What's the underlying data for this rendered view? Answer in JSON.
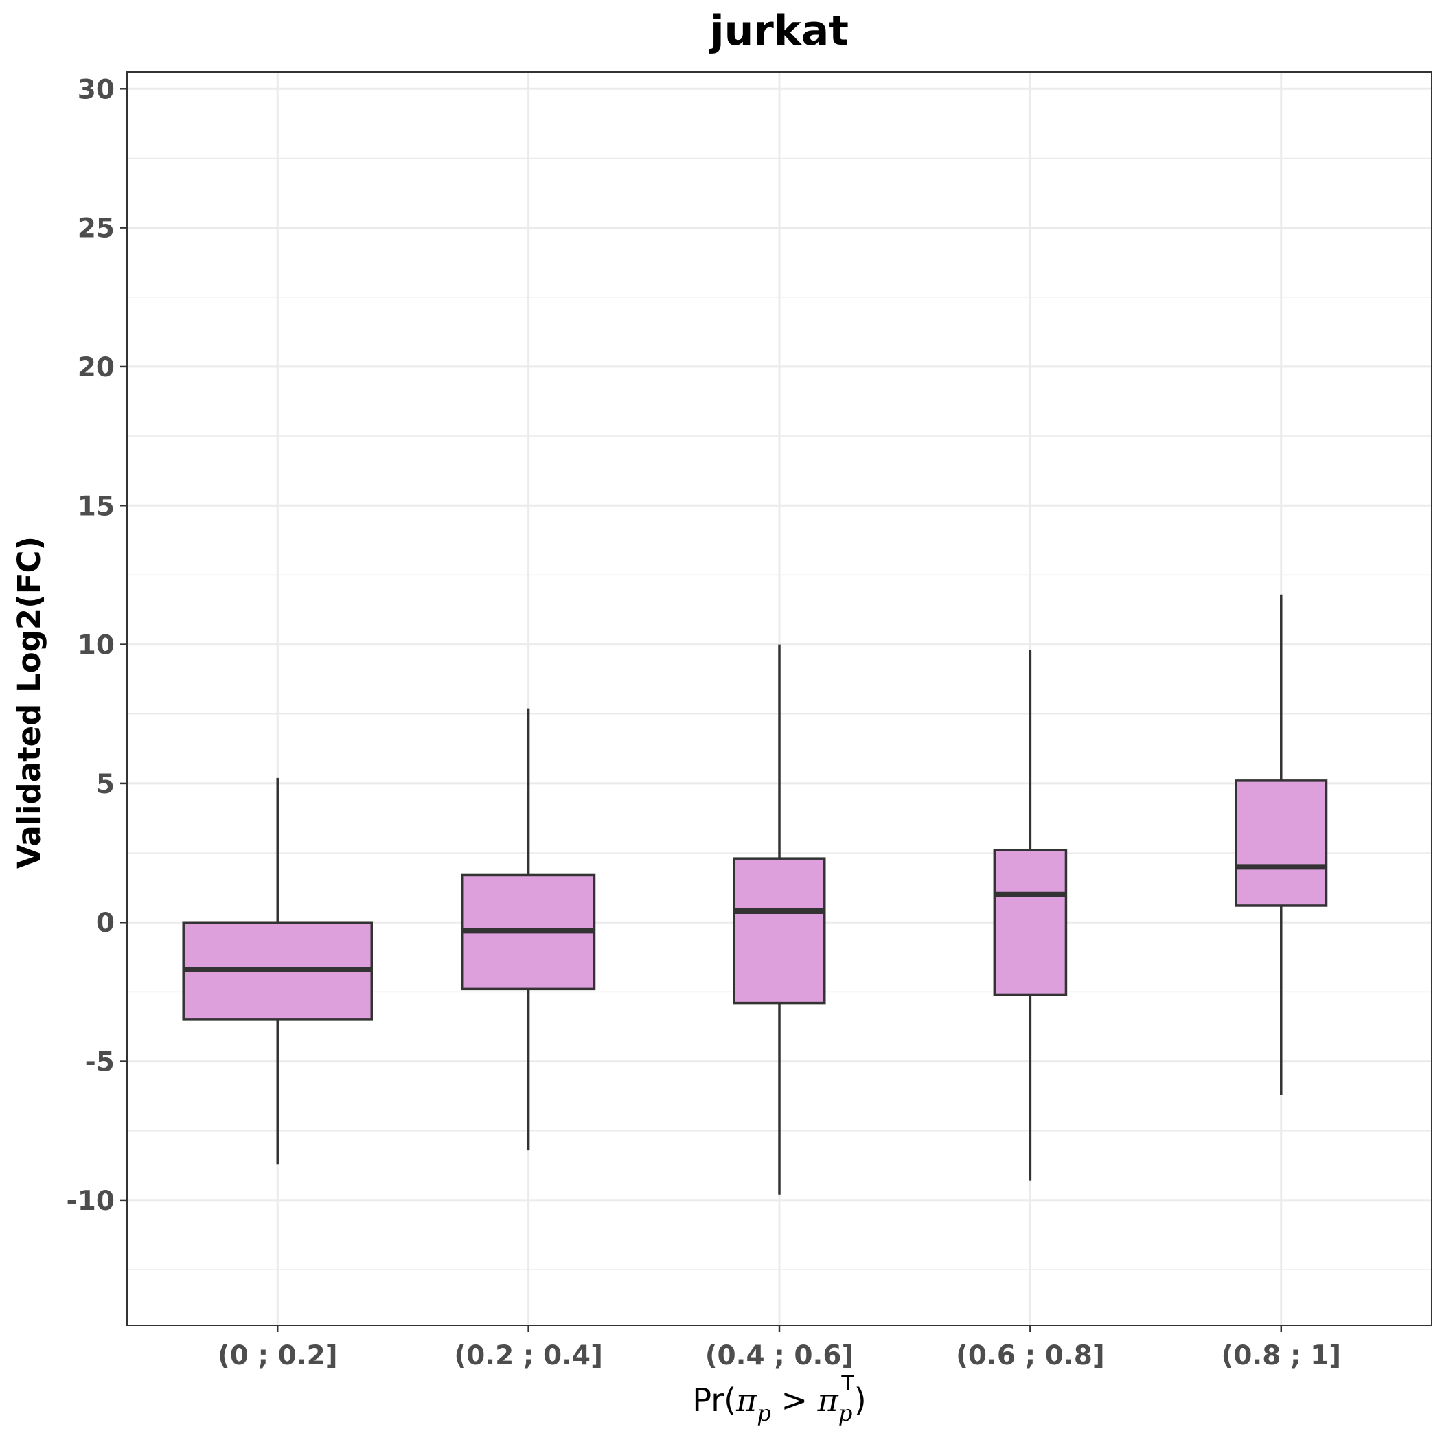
{
  "chart_data": {
    "type": "box",
    "title": "jurkat",
    "ylabel": "Validated Log2(FC)",
    "xlabel": {
      "prefix": "Pr(",
      "pi1": "π",
      "sub1": "p",
      "gt": " > ",
      "pi2": "π",
      "sub2": "p",
      "sup2": "T",
      "suffix": ")"
    },
    "ylim": [
      -14.5,
      30.6
    ],
    "yticks": [
      -10,
      -5,
      0,
      5,
      10,
      15,
      20,
      25,
      30
    ],
    "ytick_labels": [
      "-10",
      "-5",
      "0",
      "5",
      "10",
      "15",
      "20",
      "25",
      "30"
    ],
    "grid": true,
    "colors": {
      "box_fill": "#dda0dd",
      "box_stroke": "#333333",
      "grid": "#ebebeb",
      "panel_border": "#333333"
    },
    "categories": [
      "(0 ; 0.2]",
      "(0.2 ; 0.4]",
      "(0.4 ; 0.6]",
      "(0.6 ; 0.8]",
      "(0.8 ; 1]"
    ],
    "boxes": [
      {
        "whisker_low": -8.7,
        "q1": -3.5,
        "median": -1.7,
        "q3": 0.0,
        "whisker_high": 5.2,
        "relative_width": 1.0
      },
      {
        "whisker_low": -8.2,
        "q1": -2.4,
        "median": -0.3,
        "q3": 1.7,
        "whisker_high": 7.7,
        "relative_width": 0.7
      },
      {
        "whisker_low": -9.8,
        "q1": -2.9,
        "median": 0.4,
        "q3": 2.3,
        "whisker_high": 10.0,
        "relative_width": 0.48
      },
      {
        "whisker_low": -9.3,
        "q1": -2.6,
        "median": 1.0,
        "q3": 2.6,
        "whisker_high": 9.8,
        "relative_width": 0.38
      },
      {
        "whisker_low": -6.2,
        "q1": 0.6,
        "median": 2.0,
        "q3": 5.1,
        "whisker_high": 11.8,
        "relative_width": 0.48
      }
    ]
  }
}
